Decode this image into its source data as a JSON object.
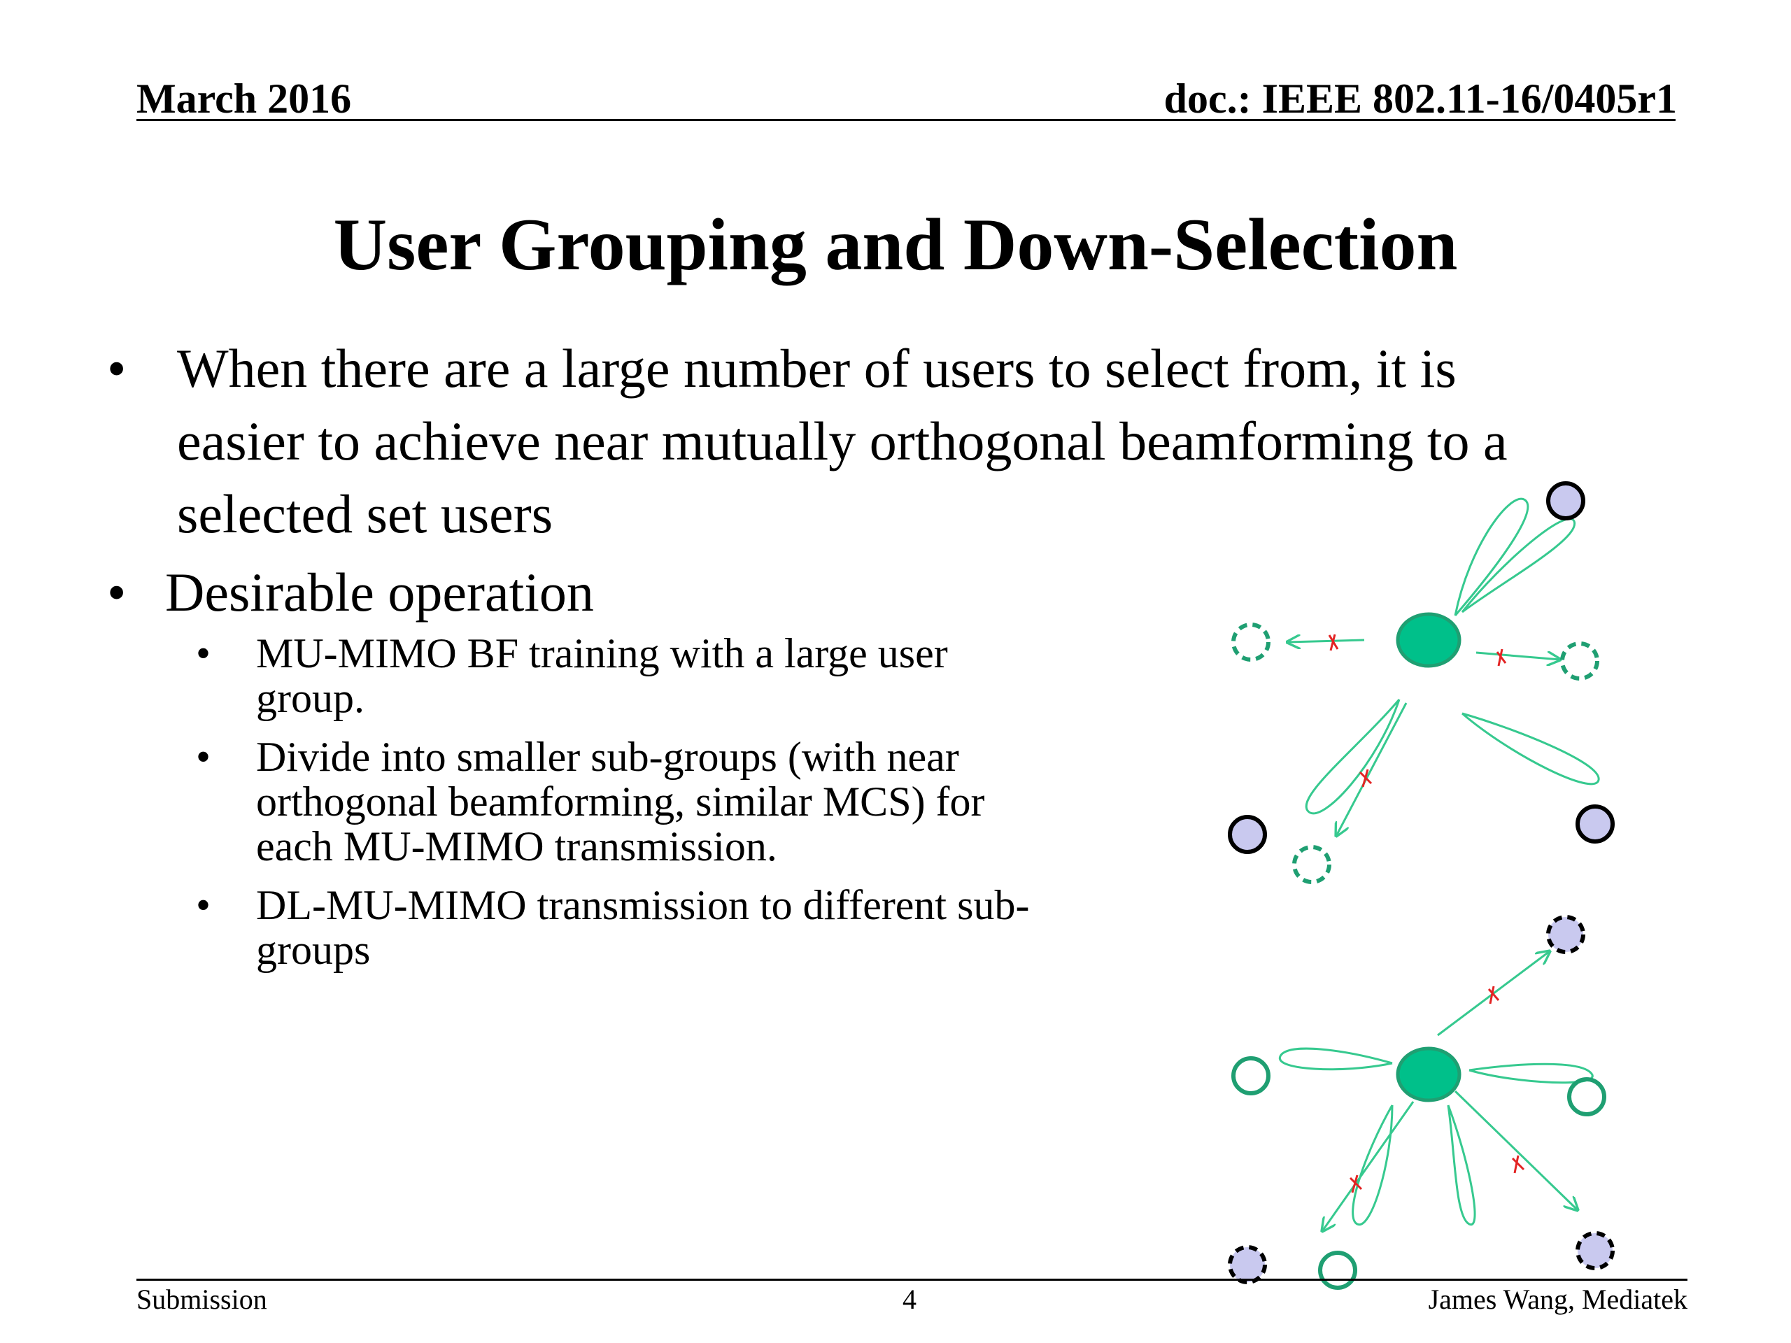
{
  "header": {
    "date": "March 2016",
    "doc": "doc.: IEEE 802.11-16/0405r1"
  },
  "title": "User Grouping and Down-Selection",
  "bullets": [
    {
      "lines": [
        "When there are a large number of users to select from, it is",
        "easier to achieve near mutually orthogonal beamforming to a",
        "selected set users"
      ]
    },
    {
      "text": "Desirable operation",
      "sub_bullets": [
        {
          "lines": [
            "MU-MIMO BF training with a large user",
            "group."
          ]
        },
        {
          "lines": [
            "Divide into smaller sub-groups (with near",
            "orthogonal beamforming, similar MCS) for",
            "each MU-MIMO transmission."
          ]
        },
        {
          "lines": [
            "DL-MU-MIMO transmission to different sub-",
            "groups"
          ]
        }
      ]
    }
  ],
  "bullet_char": "•",
  "footer": {
    "left": "Submission",
    "page": "4",
    "right": "James Wang, Mediatek"
  },
  "colors": {
    "ap_fill": "#00c08a",
    "ap_stroke": "#1f9f72",
    "beam": "#36c98f",
    "user_fill": "#c9c9ef",
    "block_x": "#e32323"
  }
}
